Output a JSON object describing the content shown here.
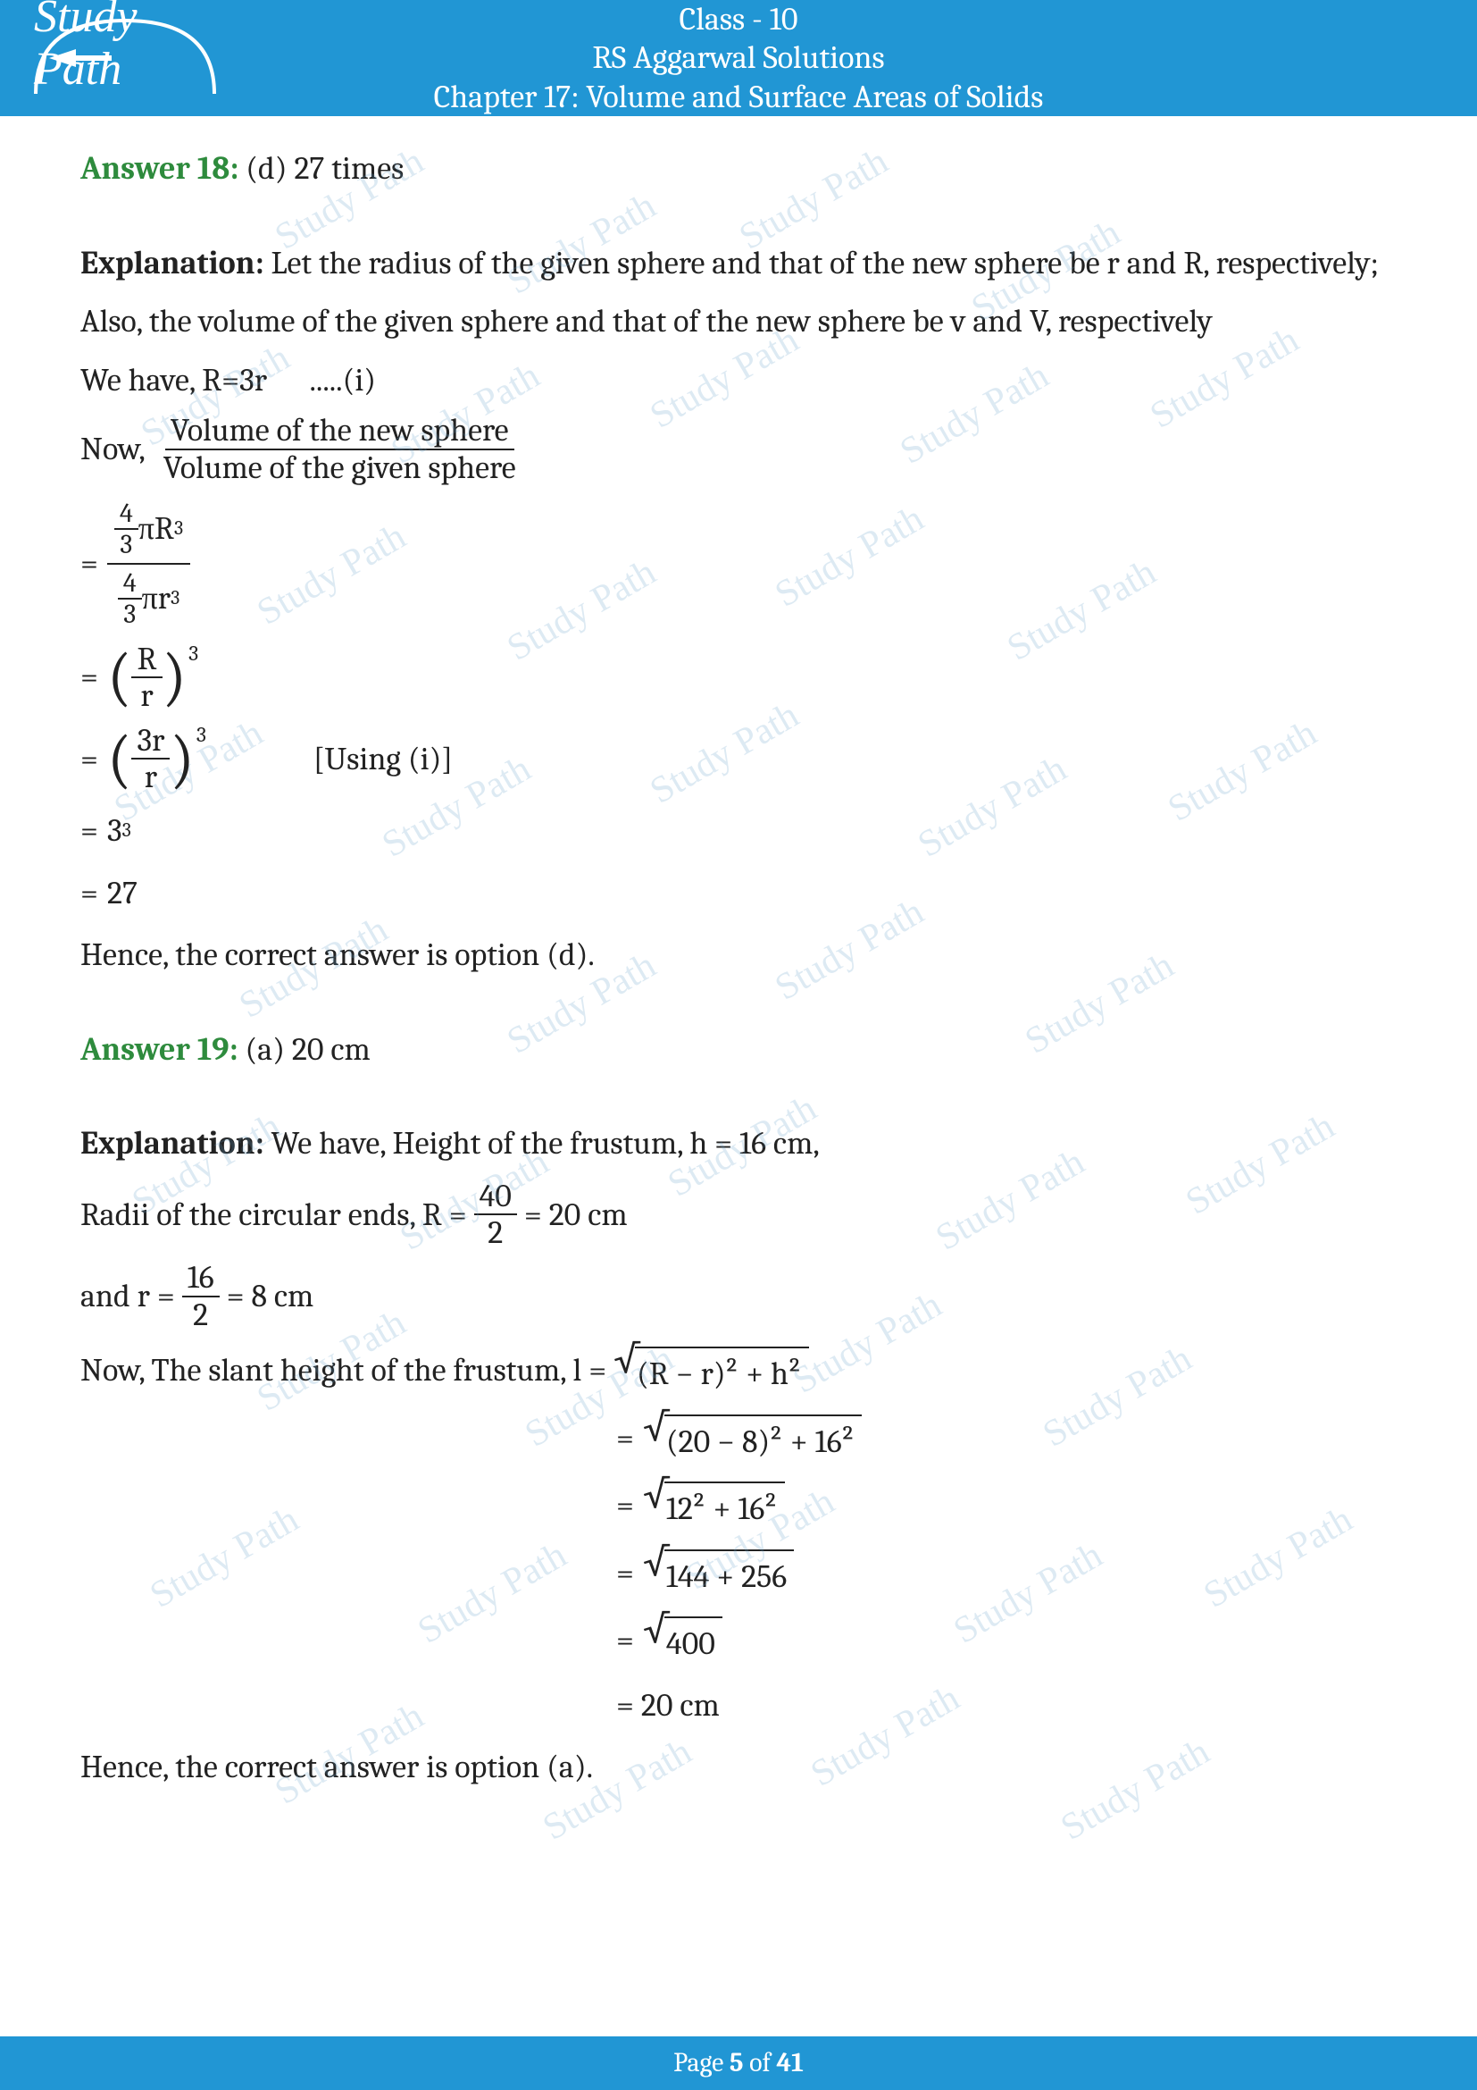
{
  "header": {
    "class_line": "Class - 10",
    "book_line": "RS Aggarwal Solutions",
    "chapter_line": "Chapter 17: Volume and Surface Areas of Solids",
    "logo_text": "Study Path"
  },
  "answer18": {
    "label": "Answer 18:",
    "answer": "(d) 27 times",
    "explanation_label": "Explanation:",
    "exp_line1": "Let the radius of the given sphere and that of the new sphere be r and R, respectively;",
    "exp_line2": "Also, the volume of the given sphere and that of the new sphere be v and V, respectively",
    "exp_line3_pre": "We have, R=3r",
    "exp_line3_tag": ".....(i)",
    "now_label": "Now,",
    "frac_num": "Volume of the new sphere",
    "frac_den": "Volume of the given sphere",
    "using_note": "[Using (i)]",
    "eq_step1_num_coef_num": "4",
    "eq_step1_num_coef_den": "3",
    "eq_step1_num_rest": "πR",
    "eq_step1_num_exp": "3",
    "eq_step1_den_rest": "πr",
    "eq_step1_den_exp": "3",
    "eq_step2_num": "R",
    "eq_step2_den": "r",
    "eq_step2_exp": "3",
    "eq_step3_num": "3r",
    "eq_step3_den": "r",
    "eq_step3_exp": "3",
    "eq_step4_base": "3",
    "eq_step4_exp": "3",
    "eq_step5": "27",
    "conclusion": "Hence, the correct answer is option (d)."
  },
  "answer19": {
    "label": "Answer 19:",
    "answer": "(a) 20 cm",
    "explanation_label": "Explanation:",
    "exp_line1": "We have, Height of the frustum, h = 16 cm,",
    "radii_pre": "Radii of the circular ends,  R =",
    "radii_frac_num": "40",
    "radii_frac_den": "2",
    "radii_post": "= 20 cm",
    "r_pre": "and r =",
    "r_frac_num": "16",
    "r_frac_den": "2",
    "r_post": "= 8 cm",
    "slant_pre": "Now, The slant height of the frustum,  l =",
    "slant_sqrt1": "(R − r)² + h²",
    "slant_sqrt2": "(20 − 8)² + 16²",
    "slant_sqrt3": "12² + 16²",
    "slant_sqrt4": "144 + 256",
    "slant_sqrt5": "400",
    "slant_final": "= 20 cm",
    "conclusion": "Hence, the correct answer is option (a)."
  },
  "footer": {
    "pre": "Page ",
    "num": "5",
    "mid": " of ",
    "total": "41"
  },
  "watermark_text": "Study Path",
  "colors": {
    "header_bg": "#2196d4",
    "answer_green": "#2e8b3d",
    "text": "#222222",
    "watermark": "rgba(100,160,200,0.22)"
  }
}
